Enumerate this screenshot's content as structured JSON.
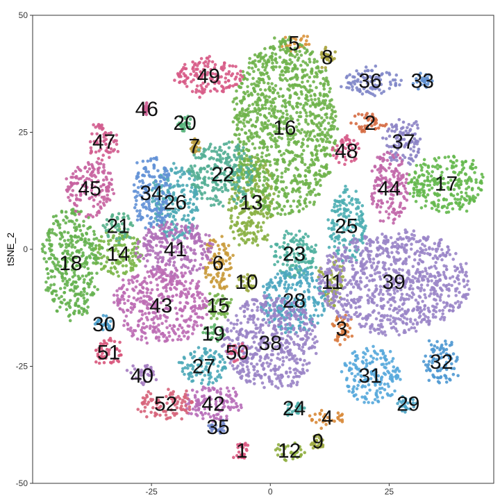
{
  "chart_data": {
    "type": "scatter",
    "title": "",
    "xlabel": "",
    "ylabel": "tSNE_2",
    "xlim": [
      -50,
      47
    ],
    "ylim": [
      -50,
      50
    ],
    "x_ticks": [
      -25,
      0,
      25
    ],
    "y_ticks": [
      -50,
      -25,
      0,
      25,
      50
    ],
    "grid": false,
    "legend": "none",
    "clusters": [
      {
        "label": "1",
        "x": -6,
        "y": -43,
        "rx": 1.5,
        "ry": 2,
        "color": "#d9577f"
      },
      {
        "label": "2",
        "x": 21,
        "y": 27,
        "rx": 4,
        "ry": 2,
        "color": "#d56b42"
      },
      {
        "label": "3",
        "x": 15,
        "y": -17,
        "rx": 2.5,
        "ry": 3,
        "color": "#d87a3f"
      },
      {
        "label": "4",
        "x": 12,
        "y": -36,
        "rx": 4,
        "ry": 1.5,
        "color": "#d88a3a"
      },
      {
        "label": "5",
        "x": 5,
        "y": 44,
        "rx": 3,
        "ry": 1.5,
        "color": "#d9923a"
      },
      {
        "label": "6",
        "x": -11,
        "y": -3,
        "rx": 3,
        "ry": 6,
        "color": "#c99a3a"
      },
      {
        "label": "7",
        "x": -16,
        "y": 22,
        "rx": 1,
        "ry": 1.5,
        "color": "#b89a3a"
      },
      {
        "label": "8",
        "x": 12,
        "y": 41,
        "rx": 1.5,
        "ry": 2.5,
        "color": "#a7a23c"
      },
      {
        "label": "9",
        "x": 10,
        "y": -41,
        "rx": 1,
        "ry": 1.5,
        "color": "#9da83e"
      },
      {
        "label": "10",
        "x": -5,
        "y": -7,
        "rx": 2,
        "ry": 2,
        "color": "#9aa83f"
      },
      {
        "label": "11",
        "x": 13,
        "y": -7,
        "rx": 2.5,
        "ry": 5,
        "color": "#9aab3f"
      },
      {
        "label": "12",
        "x": 4,
        "y": -43,
        "rx": 3,
        "ry": 2,
        "color": "#8fae40"
      },
      {
        "label": "13",
        "x": -4,
        "y": 10,
        "rx": 5,
        "ry": 10,
        "color": "#88b043"
      },
      {
        "label": "14",
        "x": -32,
        "y": -1,
        "rx": 5,
        "ry": 5,
        "color": "#7ab547"
      },
      {
        "label": "15",
        "x": -11,
        "y": -12,
        "rx": 3,
        "ry": 3,
        "color": "#76b34d"
      },
      {
        "label": "16",
        "x": 3,
        "y": 26,
        "rx": 11,
        "ry": 19,
        "color": "#6fb24b"
      },
      {
        "label": "17",
        "x": 37,
        "y": 14,
        "rx": 8,
        "ry": 6,
        "color": "#64b84c"
      },
      {
        "label": "18",
        "x": -42,
        "y": -3,
        "rx": 6,
        "ry": 12,
        "color": "#65b14f"
      },
      {
        "label": "19",
        "x": -12,
        "y": -18,
        "rx": 2,
        "ry": 2,
        "color": "#5cb46a"
      },
      {
        "label": "20",
        "x": -18,
        "y": 27,
        "rx": 1.5,
        "ry": 1.5,
        "color": "#57b27a"
      },
      {
        "label": "21",
        "x": -32,
        "y": 5,
        "rx": 3,
        "ry": 3,
        "color": "#55b08a"
      },
      {
        "label": "22",
        "x": -10,
        "y": 16,
        "rx": 7,
        "ry": 7,
        "color": "#53ae93"
      },
      {
        "label": "23",
        "x": 5,
        "y": -1,
        "rx": 5,
        "ry": 5,
        "color": "#4fb09f"
      },
      {
        "label": "24",
        "x": 5,
        "y": -34,
        "rx": 2,
        "ry": 1.5,
        "color": "#4cafaa"
      },
      {
        "label": "25",
        "x": 16,
        "y": 5,
        "rx": 4,
        "ry": 8,
        "color": "#4daeb2"
      },
      {
        "label": "26",
        "x": -20,
        "y": 10,
        "rx": 5,
        "ry": 8,
        "color": "#4eaab5"
      },
      {
        "label": "27",
        "x": -14,
        "y": -25,
        "rx": 5,
        "ry": 4,
        "color": "#4ca8b8"
      },
      {
        "label": "28",
        "x": 5,
        "y": -11,
        "rx": 7,
        "ry": 7,
        "color": "#4ba6c0"
      },
      {
        "label": "29",
        "x": 29,
        "y": -33,
        "rx": 2,
        "ry": 1.5,
        "color": "#4ca4c6"
      },
      {
        "label": "30",
        "x": -35,
        "y": -16,
        "rx": 2,
        "ry": 2,
        "color": "#4b9fcc"
      },
      {
        "label": "31",
        "x": 21,
        "y": -27,
        "rx": 6,
        "ry": 6,
        "color": "#57a9dc"
      },
      {
        "label": "32",
        "x": 36,
        "y": -24,
        "rx": 3.5,
        "ry": 5,
        "color": "#4e98d2"
      },
      {
        "label": "33",
        "x": 32,
        "y": 36,
        "rx": 2,
        "ry": 1.5,
        "color": "#5d8fd0"
      },
      {
        "label": "34",
        "x": -25,
        "y": 12,
        "rx": 4,
        "ry": 8,
        "color": "#6291d6"
      },
      {
        "label": "35",
        "x": -11,
        "y": -38,
        "rx": 2,
        "ry": 1.5,
        "color": "#7288cc"
      },
      {
        "label": "36",
        "x": 21,
        "y": 36,
        "rx": 6,
        "ry": 3,
        "color": "#7f86c8"
      },
      {
        "label": "37",
        "x": 28,
        "y": 23,
        "rx": 4,
        "ry": 5,
        "color": "#8b82c4"
      },
      {
        "label": "38",
        "x": 0,
        "y": -20,
        "rx": 10,
        "ry": 10,
        "color": "#9a84c6"
      },
      {
        "label": "39",
        "x": 26,
        "y": -7,
        "rx": 16,
        "ry": 11,
        "color": "#9a85c8"
      },
      {
        "label": "40",
        "x": -27,
        "y": -27,
        "rx": 3,
        "ry": 2,
        "color": "#a279bf"
      },
      {
        "label": "41",
        "x": -20,
        "y": 0,
        "rx": 8,
        "ry": 6,
        "color": "#b070b8"
      },
      {
        "label": "42",
        "x": -12,
        "y": -33,
        "rx": 6,
        "ry": 4,
        "color": "#b76db8"
      },
      {
        "label": "43",
        "x": -23,
        "y": -12,
        "rx": 10,
        "ry": 8,
        "color": "#bc6cb4"
      },
      {
        "label": "44",
        "x": 25,
        "y": 13,
        "rx": 4,
        "ry": 8,
        "color": "#c166a9"
      },
      {
        "label": "45",
        "x": -38,
        "y": 13,
        "rx": 5,
        "ry": 6,
        "color": "#c763a0"
      },
      {
        "label": "46",
        "x": -26,
        "y": 30,
        "rx": 1,
        "ry": 1,
        "color": "#cf5f95"
      },
      {
        "label": "47",
        "x": -35,
        "y": 23,
        "rx": 3,
        "ry": 4,
        "color": "#d15c8e"
      },
      {
        "label": "48",
        "x": 16,
        "y": 21,
        "rx": 3,
        "ry": 3,
        "color": "#d65a88"
      },
      {
        "label": "49",
        "x": -13,
        "y": 37,
        "rx": 7,
        "ry": 4,
        "color": "#d75a86"
      },
      {
        "label": "50",
        "x": -7,
        "y": -22,
        "rx": 2,
        "ry": 2,
        "color": "#d95882"
      },
      {
        "label": "51",
        "x": -34,
        "y": -22,
        "rx": 3,
        "ry": 3,
        "color": "#d8577c"
      },
      {
        "label": "52",
        "x": -22,
        "y": -33,
        "rx": 6,
        "ry": 3,
        "color": "#d6637a"
      }
    ]
  }
}
